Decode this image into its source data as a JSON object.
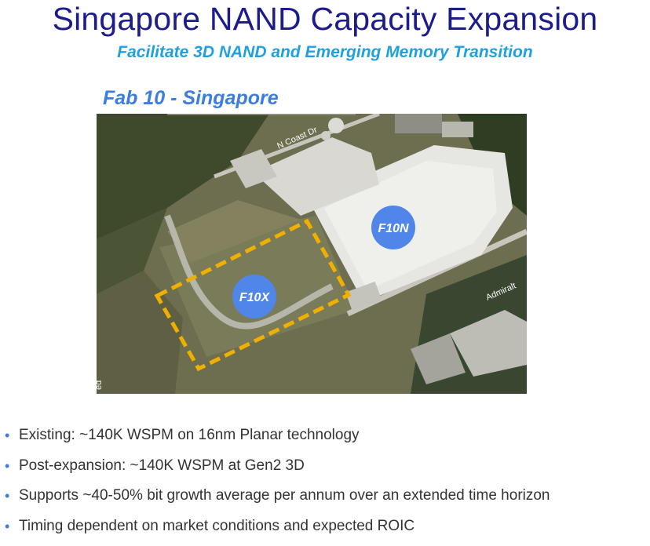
{
  "slide": {
    "title": "Singapore NAND Capacity Expansion",
    "subtitle": "Facilitate 3D NAND and Emerging Memory Transition",
    "fab_label": "Fab 10 - Singapore"
  },
  "map": {
    "markers": {
      "existing": "F10N",
      "expansion": "F10X"
    },
    "road_labels": {
      "coast": "N Coast Dr",
      "admiralty": "Admiralt",
      "edge": "ed"
    },
    "colors": {
      "marker": "#4f86e8",
      "outline": "#f0b000"
    }
  },
  "bullets": [
    "Existing: ~140K WSPM on 16nm Planar technology",
    "Post-expansion: ~140K WSPM at Gen2 3D",
    "Supports ~40-50% bit growth average per annum over an extended time horizon",
    "Timing dependent on market conditions and expected ROIC"
  ],
  "bullet_icon": "bullet-dot"
}
